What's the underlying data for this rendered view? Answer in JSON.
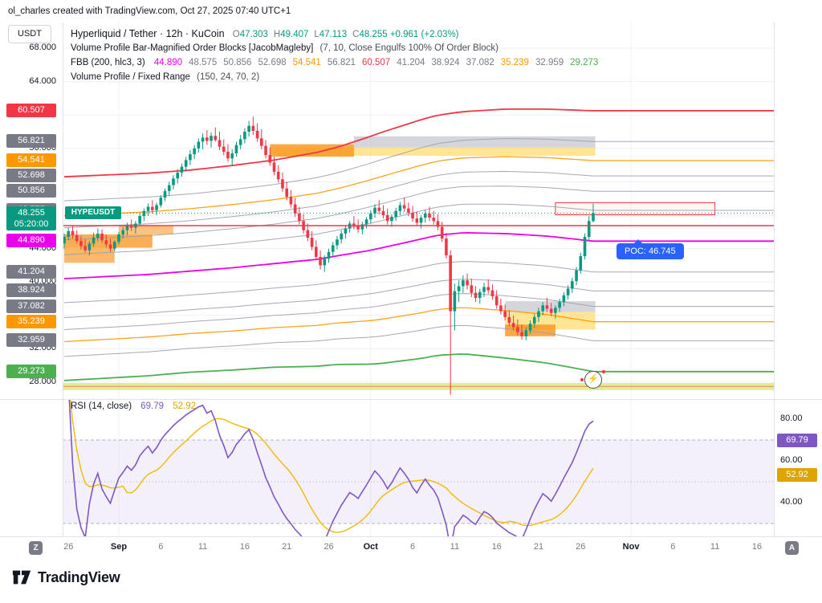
{
  "meta": {
    "attribution": "ol_charles created with TradingView.com, Oct 27, 2025 07:40 UTC+1"
  },
  "toolbar": {
    "currency_button": "USDT"
  },
  "legend": {
    "symbol": {
      "title": "Hyperliquid / Tether · 12h · KuCoin",
      "ohlc": [
        {
          "l": "O",
          "v": "47.303"
        },
        {
          "l": "H",
          "v": "49.407"
        },
        {
          "l": "L",
          "v": "47.113"
        },
        {
          "l": "C",
          "v": "48.255"
        }
      ],
      "change": "+0.961 (+2.03%)",
      "value_color": "#089981",
      "change_color": "#089981"
    },
    "indicator_vp_ob": {
      "title": "Volume Profile Bar-Magnified Order Blocks [JacobMagleby]",
      "params": "(7, 10, Close Engulfs 100% Of Order Block)"
    },
    "fbb": {
      "title": "FBB (200, hlc3, 3)",
      "values": [
        {
          "v": "44.890",
          "c": "#ea00ea"
        },
        {
          "v": "48.575",
          "c": "#787b86"
        },
        {
          "v": "50.856",
          "c": "#787b86"
        },
        {
          "v": "52.698",
          "c": "#787b86"
        },
        {
          "v": "54.541",
          "c": "#ff9800"
        },
        {
          "v": "56.821",
          "c": "#787b86"
        },
        {
          "v": "60.507",
          "c": "#f23645"
        },
        {
          "v": "41.204",
          "c": "#787b86"
        },
        {
          "v": "38.924",
          "c": "#787b86"
        },
        {
          "v": "37.082",
          "c": "#787b86"
        },
        {
          "v": "35.239",
          "c": "#ff9800"
        },
        {
          "v": "32.959",
          "c": "#787b86"
        },
        {
          "v": "29.273",
          "c": "#4caf50"
        }
      ]
    },
    "indicator_vp_fr": {
      "title": "Volume Profile / Fixed Range",
      "params": "(150, 24, 70, 2)"
    }
  },
  "rsi_legend": {
    "title": "RSI (14, close)",
    "value": "69.79",
    "ma": "52.92",
    "value_color": "#7e57c2",
    "ma_color": "#dfa400"
  },
  "price_scale": {
    "plain": [
      {
        "v": "68.000",
        "p": 68
      },
      {
        "v": "64.000",
        "p": 64
      },
      {
        "v": "56.000",
        "p": 56
      },
      {
        "v": "44.000",
        "p": 44
      },
      {
        "v": "40.000",
        "p": 40
      },
      {
        "v": "32.000",
        "p": 32
      },
      {
        "v": "28.000",
        "p": 28
      }
    ],
    "badges": [
      {
        "v": "60.507",
        "p": 60.507,
        "bg": "#f23645"
      },
      {
        "v": "56.821",
        "p": 56.821,
        "bg": "#787b86"
      },
      {
        "v": "54.541",
        "p": 54.541,
        "bg": "#ff9800"
      },
      {
        "v": "52.698",
        "p": 52.698,
        "bg": "#787b86"
      },
      {
        "v": "50.856",
        "p": 50.856,
        "bg": "#787b86"
      },
      {
        "v": "48.575",
        "p": 48.575,
        "bg": "#787b86"
      },
      {
        "v": "44.890",
        "p": 44.89,
        "bg": "#ea00ea"
      },
      {
        "v": "41.204",
        "p": 41.204,
        "bg": "#787b86"
      },
      {
        "v": "38.924",
        "p": 38.924,
        "bg": "#787b86"
      },
      {
        "v": "37.082",
        "p": 37.082,
        "bg": "#787b86"
      },
      {
        "v": "35.239",
        "p": 35.239,
        "bg": "#ff9800"
      },
      {
        "v": "32.959",
        "p": 32.959,
        "bg": "#787b86"
      },
      {
        "v": "29.273",
        "p": 29.273,
        "bg": "#4caf50"
      }
    ],
    "current": {
      "price": "48.255",
      "countdown": "05:20:00",
      "tag": "HYPEUSDT",
      "bg": "#089981"
    }
  },
  "rsi_scale": {
    "plain": [
      {
        "v": "80.00",
        "r": 80
      },
      {
        "v": "60.00",
        "r": 60
      },
      {
        "v": "40.00",
        "r": 40
      }
    ],
    "badges": [
      {
        "v": "69.79",
        "r": 69.79,
        "bg": "#7e57c2"
      },
      {
        "v": "52.92",
        "r": 52.92,
        "bg": "#dfa400"
      }
    ]
  },
  "time_axis": {
    "left_badge": "Z",
    "right_badge": "A"
  },
  "poc": {
    "label": "POC: 46.745",
    "price": 46.745,
    "bg": "#2962ff"
  },
  "flash_icon": "⚡",
  "footer": {
    "logo_text": "TradingView"
  },
  "chart_data": {
    "type": "candlestick",
    "title": "Hyperliquid / Tether",
    "symbol": "HYPEUSDT",
    "exchange": "KuCoin",
    "interval": "12h",
    "last_bar": {
      "open": 47.303,
      "high": 49.407,
      "low": 47.113,
      "close": 48.255,
      "change": "+0.961 (+2.03%)"
    },
    "up_color": "#089981",
    "down_color": "#f23645",
    "price_grid": [
      28,
      32,
      36,
      40,
      44,
      48,
      52,
      56,
      60,
      64,
      68
    ],
    "candles": [
      [
        44.6,
        45.8,
        44.0,
        45.4
      ],
      [
        45.4,
        46.5,
        45.0,
        46.1
      ],
      [
        46.1,
        46.8,
        45.2,
        45.6
      ],
      [
        45.6,
        46.2,
        44.6,
        44.9
      ],
      [
        44.9,
        45.5,
        43.9,
        44.3
      ],
      [
        44.3,
        45.1,
        43.5,
        43.8
      ],
      [
        43.8,
        44.9,
        43.2,
        44.6
      ],
      [
        44.6,
        45.9,
        44.2,
        45.3
      ],
      [
        45.3,
        46.4,
        44.9,
        45.8
      ],
      [
        45.8,
        46.3,
        44.7,
        45.0
      ],
      [
        45.0,
        45.7,
        44.1,
        44.5
      ],
      [
        44.5,
        45.2,
        43.6,
        44.0
      ],
      [
        44.0,
        45.0,
        43.7,
        44.8
      ],
      [
        44.8,
        46.0,
        44.5,
        45.7
      ],
      [
        45.7,
        46.6,
        45.2,
        46.2
      ],
      [
        46.2,
        47.1,
        45.6,
        46.8
      ],
      [
        46.8,
        47.5,
        46.1,
        46.5
      ],
      [
        46.5,
        47.3,
        45.8,
        47.0
      ],
      [
        47.0,
        48.2,
        46.7,
        47.9
      ],
      [
        47.9,
        48.8,
        47.3,
        48.5
      ],
      [
        48.5,
        49.4,
        47.9,
        49.0
      ],
      [
        49.0,
        49.8,
        48.2,
        48.6
      ],
      [
        48.6,
        49.5,
        48.0,
        49.2
      ],
      [
        49.2,
        50.4,
        48.9,
        50.1
      ],
      [
        50.1,
        51.2,
        49.7,
        50.9
      ],
      [
        50.9,
        52.0,
        50.3,
        51.6
      ],
      [
        51.6,
        52.8,
        51.1,
        52.4
      ],
      [
        52.4,
        53.5,
        51.8,
        53.1
      ],
      [
        53.1,
        54.2,
        52.6,
        53.8
      ],
      [
        53.8,
        55.0,
        53.2,
        54.6
      ],
      [
        54.6,
        55.8,
        54.0,
        55.3
      ],
      [
        55.3,
        56.4,
        54.7,
        56.0
      ],
      [
        56.0,
        57.2,
        55.5,
        56.8
      ],
      [
        56.8,
        57.8,
        55.9,
        57.3
      ],
      [
        57.3,
        58.2,
        56.4,
        56.9
      ],
      [
        56.9,
        57.9,
        56.1,
        57.5
      ],
      [
        57.5,
        58.5,
        56.8,
        57.0
      ],
      [
        57.0,
        58.0,
        55.8,
        56.2
      ],
      [
        56.2,
        57.1,
        55.2,
        55.6
      ],
      [
        55.6,
        56.5,
        54.4,
        54.8
      ],
      [
        54.8,
        55.9,
        54.0,
        55.4
      ],
      [
        55.4,
        56.8,
        55.0,
        56.4
      ],
      [
        56.4,
        57.6,
        55.9,
        57.1
      ],
      [
        57.1,
        58.4,
        56.6,
        58.0
      ],
      [
        58.0,
        59.3,
        57.4,
        58.7
      ],
      [
        58.7,
        59.8,
        57.6,
        58.1
      ],
      [
        58.1,
        59.0,
        56.8,
        57.2
      ],
      [
        57.2,
        58.3,
        55.9,
        56.3
      ],
      [
        56.3,
        57.0,
        54.8,
        55.2
      ],
      [
        55.2,
        56.1,
        53.9,
        54.3
      ],
      [
        54.3,
        55.0,
        52.8,
        53.2
      ],
      [
        53.2,
        54.0,
        51.9,
        52.3
      ],
      [
        52.3,
        53.1,
        50.8,
        51.2
      ],
      [
        51.2,
        52.0,
        49.8,
        50.2
      ],
      [
        50.2,
        51.0,
        48.9,
        49.3
      ],
      [
        49.3,
        50.1,
        47.8,
        48.2
      ],
      [
        48.2,
        49.0,
        46.9,
        47.3
      ],
      [
        47.3,
        48.1,
        45.8,
        46.2
      ],
      [
        46.2,
        47.0,
        44.9,
        45.3
      ],
      [
        45.3,
        46.1,
        43.8,
        44.2
      ],
      [
        44.2,
        45.0,
        42.6,
        43.0
      ],
      [
        43.0,
        43.8,
        41.5,
        42.0
      ],
      [
        42.0,
        43.2,
        41.2,
        42.8
      ],
      [
        42.8,
        44.0,
        42.3,
        43.6
      ],
      [
        43.6,
        44.8,
        43.1,
        44.4
      ],
      [
        44.4,
        45.5,
        43.9,
        45.1
      ],
      [
        45.1,
        46.2,
        44.6,
        45.8
      ],
      [
        45.8,
        46.8,
        45.2,
        46.4
      ],
      [
        46.4,
        47.3,
        45.9,
        47.0
      ],
      [
        47.0,
        47.9,
        46.3,
        46.7
      ],
      [
        46.7,
        47.5,
        45.9,
        46.3
      ],
      [
        46.3,
        47.2,
        45.7,
        46.9
      ],
      [
        46.9,
        47.8,
        46.4,
        47.5
      ],
      [
        47.5,
        48.6,
        47.0,
        48.2
      ],
      [
        48.2,
        49.3,
        47.7,
        48.9
      ],
      [
        48.9,
        49.8,
        48.1,
        48.5
      ],
      [
        48.5,
        49.2,
        47.6,
        48.0
      ],
      [
        48.0,
        48.8,
        46.9,
        47.3
      ],
      [
        47.3,
        48.1,
        46.6,
        47.8
      ],
      [
        47.8,
        48.9,
        47.3,
        48.5
      ],
      [
        48.5,
        49.6,
        48.0,
        49.2
      ],
      [
        49.2,
        50.1,
        48.4,
        48.8
      ],
      [
        48.8,
        49.5,
        47.9,
        48.3
      ],
      [
        48.3,
        49.1,
        47.2,
        47.6
      ],
      [
        47.6,
        48.4,
        46.8,
        47.1
      ],
      [
        47.1,
        48.0,
        46.4,
        47.7
      ],
      [
        47.7,
        48.6,
        47.1,
        48.2
      ],
      [
        48.2,
        49.0,
        47.3,
        47.7
      ],
      [
        47.7,
        48.5,
        46.9,
        47.3
      ],
      [
        47.3,
        48.1,
        46.2,
        46.6
      ],
      [
        46.6,
        47.2,
        44.8,
        45.2
      ],
      [
        45.2,
        45.9,
        42.8,
        43.2
      ],
      [
        43.2,
        43.8,
        26.5,
        36.5
      ],
      [
        36.5,
        39.8,
        34.2,
        38.9
      ],
      [
        38.9,
        40.2,
        37.6,
        39.5
      ],
      [
        39.5,
        40.8,
        38.7,
        40.2
      ],
      [
        40.2,
        41.0,
        39.1,
        39.6
      ],
      [
        39.6,
        40.4,
        38.2,
        38.7
      ],
      [
        38.7,
        39.5,
        37.6,
        38.1
      ],
      [
        38.1,
        39.2,
        37.4,
        38.8
      ],
      [
        38.8,
        39.9,
        38.2,
        39.4
      ],
      [
        39.4,
        40.3,
        38.6,
        39.0
      ],
      [
        39.0,
        39.7,
        37.9,
        38.3
      ],
      [
        38.3,
        39.0,
        36.8,
        37.2
      ],
      [
        37.2,
        38.0,
        36.1,
        36.5
      ],
      [
        36.5,
        37.3,
        35.4,
        35.8
      ],
      [
        35.8,
        36.6,
        34.7,
        35.1
      ],
      [
        35.1,
        36.0,
        34.2,
        34.6
      ],
      [
        34.6,
        35.5,
        33.6,
        34.0
      ],
      [
        34.0,
        34.9,
        33.1,
        33.5
      ],
      [
        33.5,
        34.6,
        33.0,
        34.2
      ],
      [
        34.2,
        35.4,
        33.8,
        35.0
      ],
      [
        35.0,
        36.2,
        34.5,
        35.8
      ],
      [
        35.8,
        36.9,
        35.2,
        36.5
      ],
      [
        36.5,
        37.6,
        36.0,
        37.2
      ],
      [
        37.2,
        38.1,
        36.4,
        36.8
      ],
      [
        36.8,
        37.5,
        35.9,
        36.3
      ],
      [
        36.3,
        37.2,
        35.6,
        36.9
      ],
      [
        36.9,
        38.0,
        36.4,
        37.6
      ],
      [
        37.6,
        38.8,
        37.1,
        38.4
      ],
      [
        38.4,
        39.6,
        37.9,
        39.2
      ],
      [
        39.2,
        40.5,
        38.7,
        40.1
      ],
      [
        40.1,
        41.8,
        39.6,
        41.4
      ],
      [
        41.4,
        43.5,
        41.0,
        43.1
      ],
      [
        43.1,
        45.8,
        42.7,
        45.4
      ],
      [
        45.4,
        47.9,
        45.0,
        47.3
      ],
      [
        47.303,
        49.407,
        47.113,
        48.255
      ]
    ],
    "fbb": {
      "fibs": [
        0.236,
        0.382,
        0.5,
        0.618,
        0.764
      ],
      "basis_points": [
        [
          0,
          40.4
        ],
        [
          20,
          40.9
        ],
        [
          40,
          41.7
        ],
        [
          60,
          42.7
        ],
        [
          73,
          43.8
        ],
        [
          82,
          44.8
        ],
        [
          89,
          45.6
        ],
        [
          95,
          45.9
        ],
        [
          105,
          45.8
        ],
        [
          115,
          45.5
        ],
        [
          126,
          44.89
        ],
        [
          170,
          44.89
        ]
      ],
      "dev_points": [
        [
          0,
          12.2
        ],
        [
          30,
          12.1
        ],
        [
          50,
          12.4
        ],
        [
          65,
          13.0
        ],
        [
          75,
          13.8
        ],
        [
          85,
          14.3
        ],
        [
          95,
          14.5
        ],
        [
          105,
          14.9
        ],
        [
          115,
          15.2
        ],
        [
          126,
          15.617
        ],
        [
          170,
          15.617
        ]
      ],
      "colors": {
        "basis": "#ea00ea",
        "upper": "#f23645",
        "lower": "#4caf50",
        "fib618": "#ff9800",
        "minor": "#9aa0ab"
      }
    },
    "zones": [
      {
        "i0": 0,
        "i1": 21,
        "top": 45.7,
        "bottom": 44.1,
        "fill": "rgba(247,147,26,0.75)"
      },
      {
        "i0": 0,
        "i1": 12,
        "top": 44.1,
        "bottom": 42.3,
        "fill": "rgba(247,147,26,0.65)"
      },
      {
        "i0": 13,
        "i1": 26,
        "top": 46.8,
        "bottom": 45.7,
        "fill": "rgba(247,147,26,0.55)"
      },
      {
        "i0": 50,
        "i1": 126.5,
        "top": 56.1,
        "bottom": 55.1,
        "fill": "rgba(255,215,90,0.65)"
      },
      {
        "i0": 69,
        "i1": 126.5,
        "top": 57.45,
        "bottom": 56.1,
        "fill": "rgba(160,164,175,0.45)"
      },
      {
        "i0": 49,
        "i1": 69,
        "top": 56.5,
        "bottom": 55.0,
        "fill": "rgba(247,147,26,0.8)"
      },
      {
        "i0": 105,
        "i1": 126.5,
        "top": 37.7,
        "bottom": 36.4,
        "fill": "rgba(160,164,175,0.45)"
      },
      {
        "i0": 105,
        "i1": 126.5,
        "top": 36.4,
        "bottom": 34.3,
        "fill": "rgba(255,215,90,0.65)"
      },
      {
        "i0": 105,
        "i1": 117,
        "top": 34.9,
        "bottom": 33.5,
        "fill": "rgba(247,147,26,0.8)"
      },
      {
        "i0": 117,
        "i1": 155,
        "top": 49.5,
        "bottom": 48.05,
        "fill": "rgba(252,237,230,0.5)",
        "stroke": "#f23645"
      },
      {
        "i0": -0.4,
        "i1": 170,
        "top": 27.9,
        "bottom": 27.05,
        "fill": "rgba(205,220,57,0.55)"
      }
    ],
    "range_low_line": 27.5,
    "poc_price": 46.745,
    "current_price": 48.255,
    "x_ticks": [
      {
        "label": "26",
        "i": 1
      },
      {
        "label": "Sep",
        "i": 13,
        "major": true
      },
      {
        "label": "6",
        "i": 23
      },
      {
        "label": "11",
        "i": 33
      },
      {
        "label": "16",
        "i": 43
      },
      {
        "label": "21",
        "i": 53
      },
      {
        "label": "26",
        "i": 63
      },
      {
        "label": "Oct",
        "i": 73,
        "major": true
      },
      {
        "label": "6",
        "i": 83
      },
      {
        "label": "11",
        "i": 93
      },
      {
        "label": "16",
        "i": 103
      },
      {
        "label": "21",
        "i": 113
      },
      {
        "label": "26",
        "i": 123
      },
      {
        "label": "Nov",
        "i": 135,
        "major": true
      },
      {
        "label": "6",
        "i": 145
      },
      {
        "label": "11",
        "i": 155
      },
      {
        "label": "16",
        "i": 165
      }
    ],
    "rsi": {
      "period": 14,
      "ma_period": 14,
      "last": 69.79,
      "ma_last": 52.92,
      "line_color": "#7e57c2",
      "ma_color": "#f0b90b",
      "band": [
        30,
        70
      ],
      "levels": [
        80,
        60,
        40
      ]
    }
  }
}
